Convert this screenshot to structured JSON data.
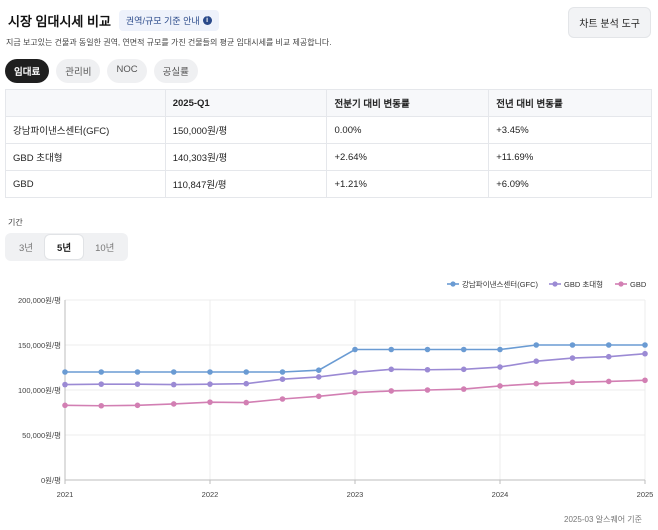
{
  "header": {
    "title": "시장 임대시세 비교",
    "guide_badge": "권역/규모 기준 안내",
    "chart_tool_button": "차트 분석 도구"
  },
  "subtitle": "지금 보고있는 건물과 동일한 권역, 연면적 규모를 가진 건물들의 평균 임대시세를 비교 제공합니다.",
  "tabs": [
    {
      "label": "임대료",
      "active": true
    },
    {
      "label": "관리비",
      "active": false
    },
    {
      "label": "NOC",
      "active": false
    },
    {
      "label": "공실률",
      "active": false
    }
  ],
  "table": {
    "headers": [
      "",
      "2025-Q1",
      "전분기 대비 변동률",
      "전년 대비 변동률"
    ],
    "rows": [
      [
        "강남파이낸스센터(GFC)",
        "150,000원/평",
        "0.00%",
        "+3.45%"
      ],
      [
        "GBD 초대형",
        "140,303원/평",
        "+2.64%",
        "+11.69%"
      ],
      [
        "GBD",
        "110,847원/평",
        "+1.21%",
        "+6.09%"
      ]
    ]
  },
  "period": {
    "label": "기간",
    "options": [
      "3년",
      "5년",
      "10년"
    ],
    "selected": "5년"
  },
  "chart_data": {
    "type": "line",
    "title": "",
    "xlabel": "",
    "ylabel": "",
    "ylim": [
      0,
      200000
    ],
    "yticks": [
      0,
      50000,
      100000,
      150000,
      200000
    ],
    "ytick_labels": [
      "0원/평",
      "50,000원/평",
      "100,000원/평",
      "150,000원/평",
      "200,000원/평"
    ],
    "xticks": [
      2021,
      2022,
      2023,
      2024,
      2025
    ],
    "xtick_labels": [
      "2021",
      "2022",
      "2023",
      "2024",
      "2025"
    ],
    "x": [
      2021.0,
      2021.25,
      2021.5,
      2021.75,
      2022.0,
      2022.25,
      2022.5,
      2022.75,
      2023.0,
      2023.25,
      2023.5,
      2023.75,
      2024.0,
      2024.25,
      2024.5,
      2024.75,
      2025.0
    ],
    "legend_position": "top-right",
    "series": [
      {
        "name": "강남파이낸스센터(GFC)",
        "color": "#6a9bd3",
        "values": [
          120000,
          120000,
          120000,
          120000,
          120000,
          120000,
          120000,
          122000,
          145000,
          145000,
          145000,
          145000,
          145000,
          150000,
          150000,
          150000,
          150000
        ]
      },
      {
        "name": "GBD 초대형",
        "color": "#9b8ad4",
        "values": [
          106000,
          106500,
          106500,
          106000,
          106500,
          107000,
          112000,
          114500,
          119500,
          123000,
          122500,
          123000,
          125500,
          132000,
          135500,
          137000,
          140300
        ]
      },
      {
        "name": "GBD",
        "color": "#d27fb3",
        "values": [
          83000,
          82500,
          83000,
          84500,
          86500,
          86000,
          90000,
          93000,
          97000,
          99000,
          100000,
          101000,
          104500,
          107000,
          108500,
          109500,
          110800
        ]
      }
    ]
  },
  "footnote": "2025-03 알스퀘어 기준"
}
